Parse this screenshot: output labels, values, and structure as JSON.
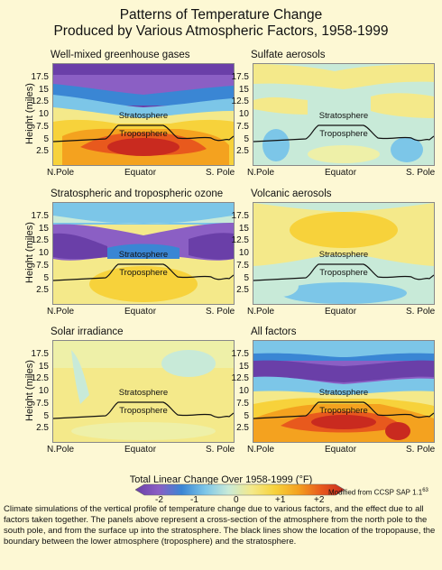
{
  "page": {
    "title_line1": "Patterns of Temperature Change",
    "title_line2": "Produced by Various Atmospheric Factors, 1958-1999",
    "colorbar_title": "Total Linear Change Over 1958-1999 (°F)",
    "colorbar_ticks": [
      "-2",
      "-1",
      "0",
      "+1",
      "+2"
    ],
    "credit": "Modified from CCSP SAP 1.1",
    "credit_sup": "63",
    "caption": "Climate simulations of the vertical profile of temperature change due to various factors, and the effect due to all factors taken together. The panels above represent a cross-section of the atmosphere from the north pole to the south pole, and from the surface up into the stratosphere. The black lines show the location of the tropopause, the boundary between the lower atmosphere (troposphere) and the stratosphere.",
    "colors": {
      "background": "#fdf8d4",
      "colorbar_stops": [
        "#6a3fa8",
        "#8b5fc4",
        "#3a86d4",
        "#7cc6e8",
        "#c8ead8",
        "#f4e98a",
        "#f7d23b",
        "#f4a21f",
        "#e8591d",
        "#c92a1f"
      ]
    }
  },
  "chart_data": [
    {
      "type": "heatmap",
      "title": "Well-mixed greenhouse gases",
      "ylabel": "Height (miles)",
      "yticks": [
        "17.5",
        "15",
        "12.5",
        "10",
        "7.5",
        "5",
        "2.5"
      ],
      "xticks": [
        "N.Pole",
        "Equator",
        "S. Pole"
      ],
      "ylim": [
        0,
        20
      ],
      "annotations": [
        "Stratosphere",
        "Troposphere"
      ],
      "pattern": "greenhouse",
      "colorbar_range": [
        -2,
        2
      ]
    },
    {
      "type": "heatmap",
      "title": "Sulfate aerosols",
      "ylabel": "",
      "yticks": [
        "17.5",
        "15",
        "12.5",
        "10",
        "7.5",
        "5",
        "2.5"
      ],
      "xticks": [
        "N.Pole",
        "Equator",
        "S. Pole"
      ],
      "ylim": [
        0,
        20
      ],
      "annotations": [
        "Stratosphere",
        "Troposphere"
      ],
      "pattern": "sulfate",
      "colorbar_range": [
        -2,
        2
      ]
    },
    {
      "type": "heatmap",
      "title": "Stratospheric and tropospheric ozone",
      "ylabel": "Height (miles)",
      "yticks": [
        "17.5",
        "15",
        "12.5",
        "10",
        "7.5",
        "5",
        "2.5"
      ],
      "xticks": [
        "N.Pole",
        "Equator",
        "S. Pole"
      ],
      "ylim": [
        0,
        20
      ],
      "annotations": [
        "Stratosphere",
        "Troposphere"
      ],
      "pattern": "ozone",
      "colorbar_range": [
        -2,
        2
      ]
    },
    {
      "type": "heatmap",
      "title": "Volcanic aerosols",
      "ylabel": "",
      "yticks": [
        "17.5",
        "15",
        "12.5",
        "10",
        "7.5",
        "5",
        "2.5"
      ],
      "xticks": [
        "N.Pole",
        "Equator",
        "S. Pole"
      ],
      "ylim": [
        0,
        20
      ],
      "annotations": [
        "Stratosphere",
        "Troposphere"
      ],
      "pattern": "volcanic",
      "colorbar_range": [
        -2,
        2
      ]
    },
    {
      "type": "heatmap",
      "title": "Solar irradiance",
      "ylabel": "Height (miles)",
      "yticks": [
        "17.5",
        "15",
        "12.5",
        "10",
        "7.5",
        "5",
        "2.5"
      ],
      "xticks": [
        "N.Pole",
        "Equator",
        "S. Pole"
      ],
      "ylim": [
        0,
        20
      ],
      "annotations": [
        "Stratosphere",
        "Troposphere"
      ],
      "pattern": "solar",
      "colorbar_range": [
        -2,
        2
      ]
    },
    {
      "type": "heatmap",
      "title": "All factors",
      "ylabel": "",
      "yticks": [
        "17.5",
        "15",
        "12.5",
        "10",
        "7.5",
        "5",
        "2.5"
      ],
      "xticks": [
        "N.Pole",
        "Equator",
        "S. Pole"
      ],
      "ylim": [
        0,
        20
      ],
      "annotations": [
        "Stratosphere",
        "Troposphere"
      ],
      "pattern": "all",
      "colorbar_range": [
        -2,
        2
      ]
    }
  ]
}
